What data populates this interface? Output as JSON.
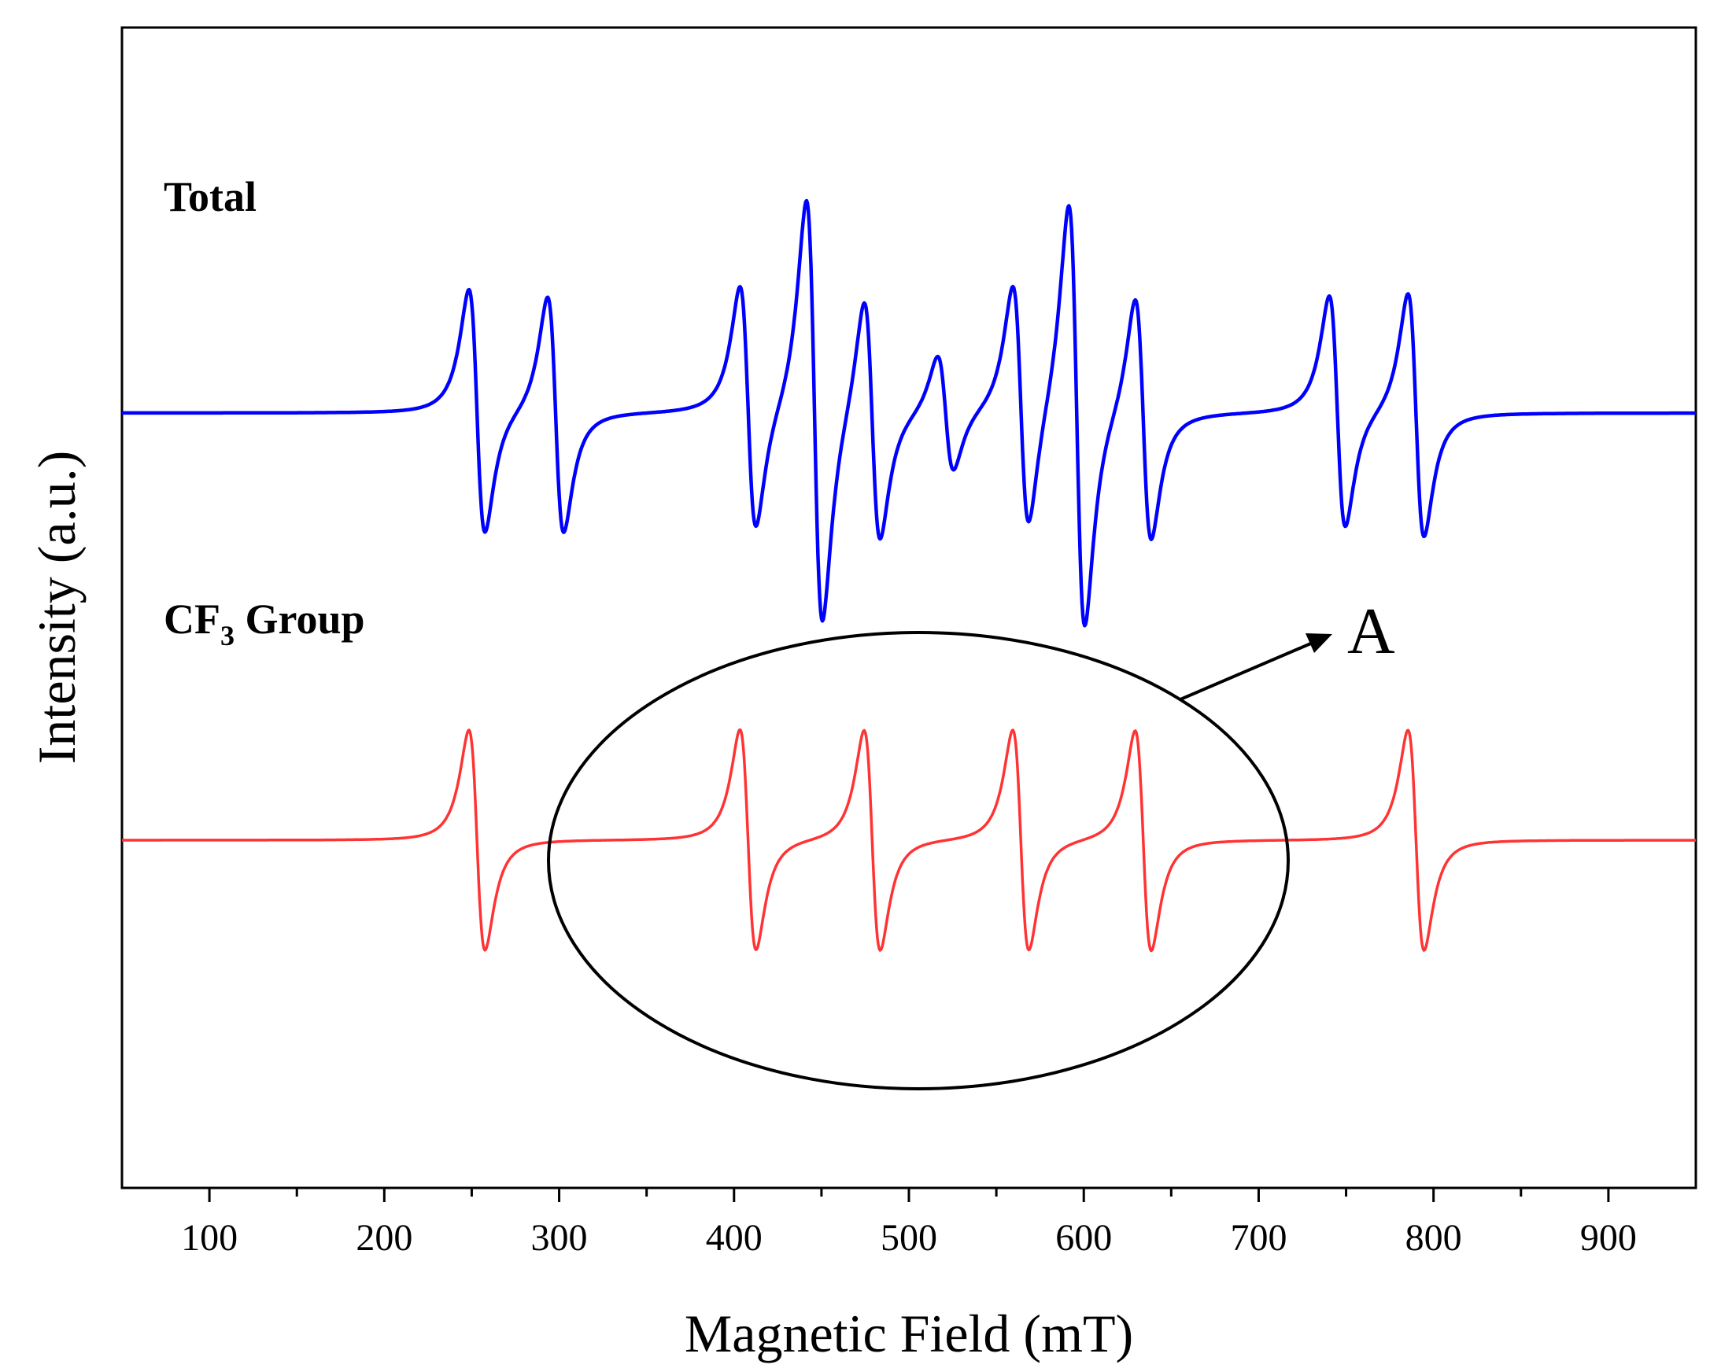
{
  "chart_data": {
    "type": "line",
    "title": "",
    "xlabel": "Magnetic Field (mT)",
    "ylabel": "Intensity (a.u.)",
    "xlim": [
      50,
      950
    ],
    "xticks": [
      "100",
      "200",
      "300",
      "400",
      "500",
      "600",
      "700",
      "800",
      "900"
    ],
    "grid": false,
    "series": [
      {
        "name": "Total",
        "label_main": "Total",
        "color": "#0000ff",
        "baseline": 0,
        "linewidth": "thick",
        "lines": [
          {
            "center": 253,
            "amplitude": 1.0
          },
          {
            "center": 298,
            "amplitude": 0.97
          },
          {
            "center": 408,
            "amplitude": 1.0
          },
          {
            "center": 446,
            "amplitude": 1.75
          },
          {
            "center": 479,
            "amplitude": 1.0
          },
          {
            "center": 521,
            "amplitude": 0.48
          },
          {
            "center": 564,
            "amplitude": 1.0
          },
          {
            "center": 596,
            "amplitude": 1.75
          },
          {
            "center": 634,
            "amplitude": 1.0
          },
          {
            "center": 745,
            "amplitude": 0.95
          },
          {
            "center": 790,
            "amplitude": 1.0
          }
        ]
      },
      {
        "name": "CF3 Group",
        "label_main": "CF",
        "label_sub": "3",
        "label_tail": " Group",
        "color": "#ff3333",
        "baseline": -1,
        "linewidth": "thin",
        "lines": [
          {
            "center": 253,
            "amplitude": 1.0
          },
          {
            "center": 408,
            "amplitude": 1.0
          },
          {
            "center": 479,
            "amplitude": 1.0
          },
          {
            "center": 564,
            "amplitude": 1.0
          },
          {
            "center": 634,
            "amplitude": 1.0
          },
          {
            "center": 790,
            "amplitude": 1.0
          }
        ]
      }
    ],
    "annotations": [
      {
        "type": "ellipse",
        "label": "A",
        "x_range": [
          294,
          716
        ],
        "around_series": "CF3 Group"
      }
    ]
  }
}
